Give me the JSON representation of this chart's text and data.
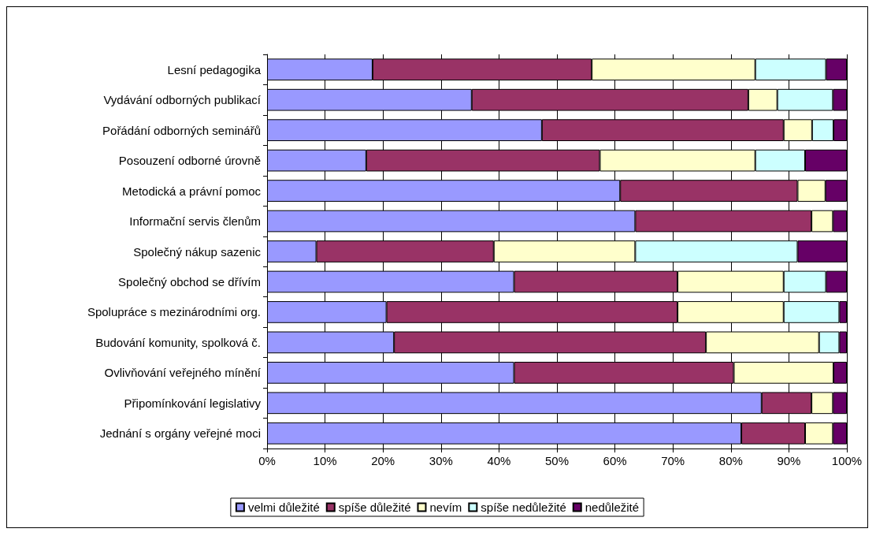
{
  "chart_data": {
    "type": "bar",
    "orientation": "horizontal",
    "stacked": true,
    "categories": [
      "Lesní pedagogika",
      "Vydávání odborných publikací",
      "Pořádání odborných seminářů",
      "Posouzení odborné úrovně",
      "Metodická a právní pomoc",
      "Informační servis členům",
      "Společný nákup sazenic",
      "Společný obchod se dřívím",
      "Spolupráce s mezinárodními org.",
      "Budování komunity, spolková č.",
      "Ovlivňování veřejného mínění",
      "Připomínkování legislativy",
      "Jednání s orgány veřejné moci"
    ],
    "series": [
      {
        "name": "velmi důležité",
        "color": "#9999ff",
        "values": [
          18.2,
          35.3,
          47.4,
          17.1,
          60.9,
          63.5,
          8.5,
          42.6,
          20.6,
          21.9,
          42.6,
          85.3,
          81.8
        ]
      },
      {
        "name": "spíše důležité",
        "color": "#993366",
        "values": [
          37.8,
          47.7,
          41.7,
          40.3,
          30.6,
          30.4,
          30.6,
          28.2,
          50.2,
          53.8,
          37.9,
          8.6,
          11.0
        ]
      },
      {
        "name": "nevím",
        "color": "#ffffcc",
        "values": [
          28.2,
          5.0,
          4.9,
          26.8,
          4.8,
          3.7,
          24.4,
          18.3,
          18.3,
          19.5,
          17.2,
          3.7,
          4.8
        ]
      },
      {
        "name": "spíše nedůležité",
        "color": "#ccffff",
        "values": [
          12.2,
          9.6,
          3.7,
          8.6,
          0,
          0,
          28.0,
          7.3,
          9.6,
          3.5,
          0,
          0,
          0
        ]
      },
      {
        "name": "nedůležité",
        "color": "#660066",
        "values": [
          3.6,
          2.4,
          2.3,
          7.2,
          3.7,
          2.4,
          8.5,
          3.6,
          1.3,
          1.3,
          2.3,
          2.4,
          2.4
        ]
      }
    ],
    "xlim": [
      0,
      100
    ],
    "xticks": [
      {
        "value": 0,
        "label": "0%"
      },
      {
        "value": 10,
        "label": "10%"
      },
      {
        "value": 20,
        "label": "20%"
      },
      {
        "value": 30,
        "label": "30%"
      },
      {
        "value": 40,
        "label": "40%"
      },
      {
        "value": 50,
        "label": "50%"
      },
      {
        "value": 60,
        "label": "60%"
      },
      {
        "value": 70,
        "label": "70%"
      },
      {
        "value": 80,
        "label": "80%"
      },
      {
        "value": 90,
        "label": "90%"
      },
      {
        "value": 100,
        "label": "100%"
      }
    ],
    "grid": "x",
    "legend": "bottom"
  }
}
